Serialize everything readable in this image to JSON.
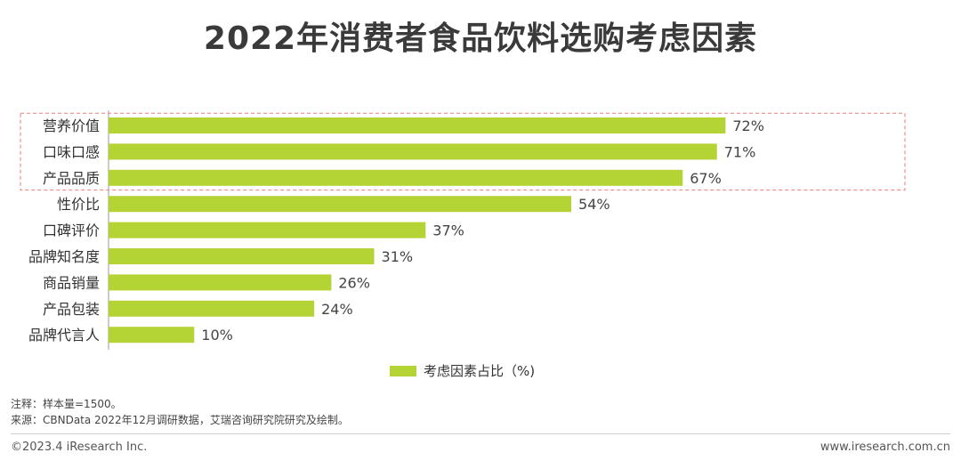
{
  "title": "2022年消费者食品饮料选购考虑因素",
  "chart_data": {
    "type": "bar",
    "orientation": "horizontal",
    "categories": [
      "营养价值",
      "口味口感",
      "产品品质",
      "性价比",
      "口碑评价",
      "品牌知名度",
      "商品销量",
      "产品包装",
      "品牌代言人"
    ],
    "values": [
      72,
      71,
      67,
      54,
      37,
      31,
      26,
      24,
      10
    ],
    "value_labels": [
      "72%",
      "71%",
      "67%",
      "54%",
      "37%",
      "31%",
      "26%",
      "24%",
      "10%"
    ],
    "unit": "%",
    "series": [
      {
        "name": "考虑因素占比（%)",
        "values": [
          72,
          71,
          67,
          54,
          37,
          31,
          26,
          24,
          10
        ]
      }
    ],
    "highlighted_categories": [
      "营养价值",
      "口味口感",
      "产品品质"
    ],
    "xlim": [
      0,
      100
    ],
    "bar_color": "#b4d334",
    "highlight_box_color": "#ee8f8f",
    "legend_position": "bottom",
    "grid": false
  },
  "legend": {
    "label": "考虑因素占比（%)"
  },
  "notes": {
    "line1": "注释：样本量=1500。",
    "line2": "来源：CBNData 2022年12月调研数据，艾瑞咨询研究院研究及绘制。"
  },
  "footer": {
    "copyright": "©2023.4 iResearch Inc.",
    "website": "www.iresearch.com.cn"
  }
}
